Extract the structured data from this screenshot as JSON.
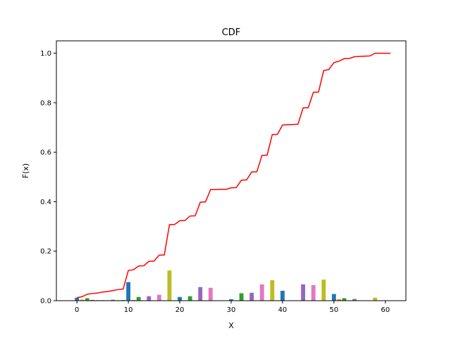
{
  "chart_data": {
    "type": "bar",
    "title": "CDF",
    "xlabel": "X",
    "ylabel": "F(x)",
    "xlim": [
      -4,
      64
    ],
    "ylim": [
      0,
      1.05
    ],
    "xticks": [
      "0",
      "10",
      "20",
      "30",
      "40",
      "50",
      "60"
    ],
    "yticks": [
      "0.0",
      "0.2",
      "0.4",
      "0.6",
      "0.8",
      "1.0"
    ],
    "grid": false,
    "bar_colors": [
      "#1f77b4",
      "#ff7f0e",
      "#2ca02c",
      "#d62728",
      "#9467bd",
      "#8c564b",
      "#e377c2",
      "#7f7f7f",
      "#bcbd22",
      "#17becf"
    ],
    "bars": {
      "x": [
        0,
        1,
        2,
        3,
        4,
        5,
        6,
        7,
        8,
        9,
        10,
        11,
        12,
        13,
        14,
        15,
        16,
        17,
        18,
        19,
        20,
        21,
        22,
        23,
        24,
        25,
        26,
        27,
        28,
        29,
        30,
        31,
        32,
        33,
        34,
        35,
        36,
        37,
        38,
        39,
        40,
        41,
        42,
        43,
        44,
        45,
        46,
        47,
        48,
        49,
        50,
        51,
        52,
        53,
        54,
        55,
        56,
        57,
        58,
        59,
        60,
        61
      ],
      "values": [
        0.012,
        0.004,
        0.01,
        0.003,
        0.002,
        0.002,
        0.002,
        0.004,
        0.002,
        0.003,
        0.075,
        0.003,
        0.015,
        0.001,
        0.018,
        0.001,
        0.024,
        0.001,
        0.122,
        0.001,
        0.015,
        0.001,
        0.018,
        0.001,
        0.055,
        0.001,
        0.052,
        0.001,
        0.001,
        0.001,
        0.006,
        0.001,
        0.03,
        0.001,
        0.032,
        0.001,
        0.066,
        0.001,
        0.083,
        0.001,
        0.04,
        0.001,
        0.001,
        0.001,
        0.066,
        0.001,
        0.063,
        0.001,
        0.085,
        0.001,
        0.027,
        0.006,
        0.01,
        0.001,
        0.007,
        0.001,
        0.001,
        0.001,
        0.012,
        0.001,
        0.001,
        0.001
      ]
    },
    "cdf_line": {
      "color": "#ff0000",
      "x": [
        0,
        1,
        2,
        3,
        4,
        5,
        6,
        7,
        8,
        9,
        10,
        11,
        12,
        13,
        14,
        15,
        16,
        17,
        18,
        19,
        20,
        21,
        22,
        23,
        24,
        25,
        26,
        27,
        28,
        29,
        30,
        31,
        32,
        33,
        34,
        35,
        36,
        37,
        38,
        39,
        40,
        41,
        42,
        43,
        44,
        45,
        46,
        47,
        48,
        49,
        50,
        51,
        52,
        53,
        54,
        55,
        56,
        57,
        58,
        59,
        60,
        61
      ],
      "values": [
        0.012,
        0.016,
        0.026,
        0.029,
        0.031,
        0.035,
        0.037,
        0.041,
        0.045,
        0.047,
        0.122,
        0.125,
        0.14,
        0.141,
        0.159,
        0.16,
        0.184,
        0.185,
        0.307,
        0.308,
        0.323,
        0.324,
        0.342,
        0.343,
        0.398,
        0.399,
        0.449,
        0.449,
        0.45,
        0.45,
        0.456,
        0.457,
        0.487,
        0.488,
        0.52,
        0.521,
        0.587,
        0.588,
        0.671,
        0.672,
        0.71,
        0.711,
        0.712,
        0.713,
        0.779,
        0.78,
        0.842,
        0.843,
        0.93,
        0.934,
        0.962,
        0.968,
        0.978,
        0.979,
        0.986,
        0.987,
        0.988,
        0.989,
        1.0,
        1.0,
        1.0,
        1.0
      ]
    }
  }
}
